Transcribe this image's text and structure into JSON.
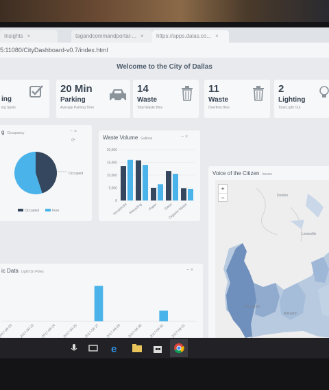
{
  "browser": {
    "tabs": [
      {
        "label": "Insights"
      },
      {
        "label": "tagandcommandportal-..."
      },
      {
        "label": "https://apps.dalas.co..."
      }
    ],
    "url": "5:11080/CityDashboard-v0.7/index.html"
  },
  "page": {
    "title": "Welcome to the City of Dallas"
  },
  "tiles": [
    {
      "number": "",
      "label": "ing",
      "sub": "ing Spots",
      "icon": "checkbox-icon"
    },
    {
      "number": "20 Min",
      "label": "Parking",
      "sub": "Average Parking Time",
      "icon": "car-icon"
    },
    {
      "number": "14",
      "label": "Waste",
      "sub": "Total Waste Bins",
      "icon": "trash-icon"
    },
    {
      "number": "11",
      "label": "Waste",
      "sub": "Overflow Bins",
      "icon": "trash-icon"
    },
    {
      "number": "2",
      "label": "Lighting",
      "sub": "Total Light Out",
      "icon": "bulb-icon"
    }
  ],
  "occupancy_panel": {
    "title": "g",
    "subtitle": "Occupancy",
    "controls": "− ×"
  },
  "waste_panel": {
    "title": "Waste Volume",
    "subtitle": "Gallons",
    "controls": "− ×"
  },
  "voice_panel": {
    "title": "Voice of the Citizen",
    "subtitle": "Issues",
    "zoom_in": "+",
    "zoom_out": "−",
    "places": {
      "denton": "Denton",
      "lewisville": "Lewisville",
      "fort_worth": "Fort Worth",
      "arlington": "Arlington"
    }
  },
  "traffic_panel": {
    "title": "ic Data",
    "subtitle": "Light On Poles",
    "controls": "− ×"
  },
  "colors": {
    "dark_series": "#34475e",
    "light_series": "#4ab3ea",
    "map_dark": "#6f8fbc",
    "map_light": "#b7cae0"
  },
  "chart_data": [
    {
      "type": "pie",
      "labels": [
        "Occupied",
        "Free"
      ],
      "values": [
        45,
        55
      ],
      "legend": "bottom"
    },
    {
      "type": "bar",
      "title": "Waste Volume",
      "categories": [
        "Household",
        "Recycling",
        "Paper",
        "Glass",
        "Organic Waste"
      ],
      "series": [
        {
          "values": [
            13500,
            15800,
            4900,
            11600,
            4800
          ]
        },
        {
          "values": [
            16000,
            14000,
            6400,
            10500,
            4600
          ]
        }
      ],
      "yticks": [
        "20,000",
        "15,000",
        "10,000",
        "5,000",
        "0"
      ],
      "ylim": [
        0,
        20000
      ]
    },
    {
      "type": "bar",
      "title": "ic Data",
      "categories": [
        "2017-08-20",
        "2017-08-23",
        "2017-08-24",
        "2017-08-25",
        "2017-08-27",
        "2017-08-28",
        "2017-08-30",
        "2017-08-31",
        "2017-09-01"
      ],
      "values": [
        0,
        0,
        0,
        0,
        10,
        0,
        0,
        3,
        0
      ],
      "ylim": [
        0,
        12
      ]
    }
  ]
}
